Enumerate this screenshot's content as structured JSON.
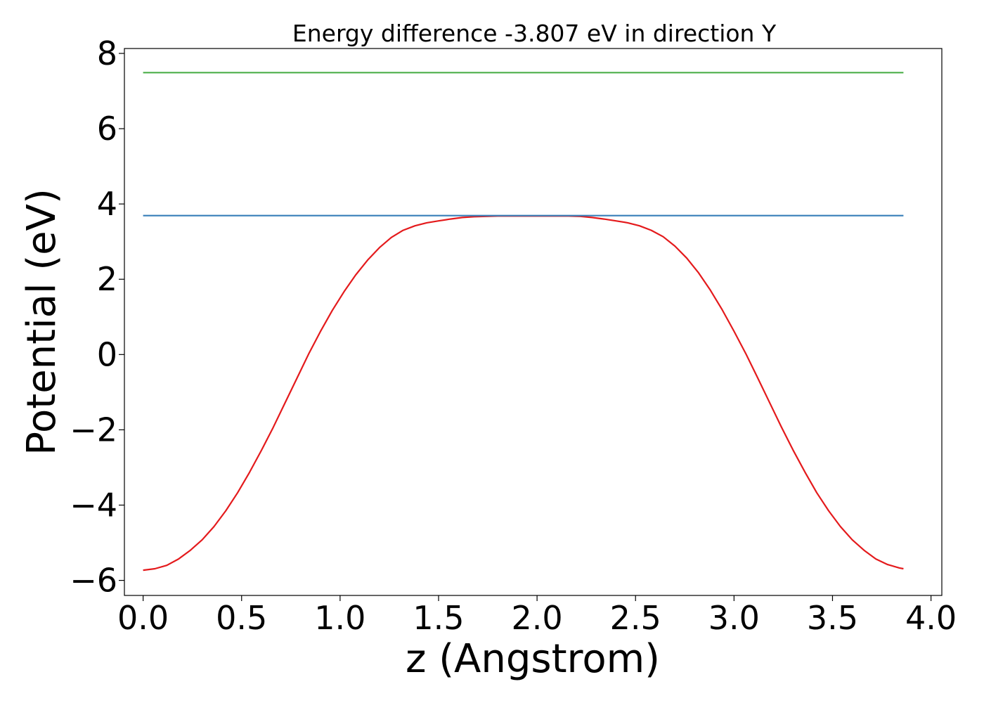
{
  "chart_data": {
    "type": "line",
    "title": "Energy difference -3.807 eV in direction Y",
    "xlabel": "z (Angstrom)",
    "ylabel": "Potential (eV)",
    "xlim": [
      -0.095,
      4.055
    ],
    "ylim": [
      -6.4,
      8.13
    ],
    "xticks": [
      0.0,
      0.5,
      1.0,
      1.5,
      2.0,
      2.5,
      3.0,
      3.5,
      4.0
    ],
    "xtick_labels": [
      "0.0",
      "0.5",
      "1.0",
      "1.5",
      "2.0",
      "2.5",
      "3.0",
      "3.5",
      "4.0"
    ],
    "yticks": [
      -6,
      -4,
      -2,
      0,
      2,
      4,
      6,
      8
    ],
    "ytick_labels": [
      "−6",
      "−4",
      "−2",
      "0",
      "2",
      "4",
      "6",
      "8"
    ],
    "grid": false,
    "legend": "none",
    "series": [
      {
        "color": "#e41a1c",
        "x": [
          0.0,
          0.06,
          0.12,
          0.18,
          0.24,
          0.3,
          0.36,
          0.42,
          0.48,
          0.54,
          0.6,
          0.66,
          0.72,
          0.78,
          0.84,
          0.9,
          0.96,
          1.02,
          1.08,
          1.14,
          1.2,
          1.26,
          1.32,
          1.38,
          1.44,
          1.5,
          1.56,
          1.62,
          1.68,
          1.74,
          1.8,
          1.86,
          1.92,
          1.98,
          2.04,
          2.1,
          2.16,
          2.22,
          2.28,
          2.34,
          2.4,
          2.46,
          2.52,
          2.58,
          2.64,
          2.7,
          2.76,
          2.82,
          2.88,
          2.94,
          3.0,
          3.06,
          3.12,
          3.18,
          3.24,
          3.3,
          3.36,
          3.42,
          3.48,
          3.54,
          3.6,
          3.66,
          3.72,
          3.78,
          3.84,
          3.86
        ],
        "y": [
          -5.73,
          -5.69,
          -5.6,
          -5.43,
          -5.2,
          -4.92,
          -4.57,
          -4.15,
          -3.67,
          -3.13,
          -2.55,
          -1.94,
          -1.29,
          -0.64,
          0.01,
          0.61,
          1.17,
          1.67,
          2.12,
          2.51,
          2.84,
          3.11,
          3.3,
          3.42,
          3.5,
          3.55,
          3.6,
          3.64,
          3.66,
          3.67,
          3.68,
          3.68,
          3.68,
          3.68,
          3.68,
          3.68,
          3.68,
          3.67,
          3.64,
          3.6,
          3.55,
          3.5,
          3.42,
          3.3,
          3.13,
          2.88,
          2.56,
          2.17,
          1.71,
          1.19,
          0.62,
          0.02,
          -0.62,
          -1.27,
          -1.92,
          -2.54,
          -3.12,
          -3.67,
          -4.15,
          -4.57,
          -4.92,
          -5.2,
          -5.43,
          -5.58,
          -5.67,
          -5.69
        ]
      },
      {
        "color": "#377eb8",
        "x": [
          0.0,
          3.86
        ],
        "y": [
          3.69,
          3.69
        ]
      },
      {
        "color": "#4daf4a",
        "x": [
          0.0,
          3.86
        ],
        "y": [
          7.49,
          7.49
        ]
      }
    ]
  }
}
